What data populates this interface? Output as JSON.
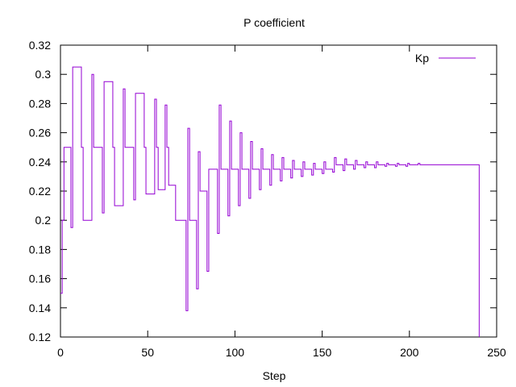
{
  "chart_data": {
    "type": "line",
    "title": "P coefficient",
    "xlabel": "Step",
    "ylabel": "",
    "xlim": [
      0,
      250
    ],
    "ylim": [
      0.12,
      0.32
    ],
    "xticks": [
      0,
      50,
      100,
      150,
      200,
      250
    ],
    "yticks": [
      0.12,
      0.14,
      0.16,
      0.18,
      0.2,
      0.22,
      0.24,
      0.26,
      0.28,
      0.3,
      0.32
    ],
    "xtick_labels": [
      "0",
      "50",
      "100",
      "150",
      "200",
      "250"
    ],
    "ytick_labels": [
      "0.12",
      "0.14",
      "0.16",
      "0.18",
      "0.2",
      "0.22",
      "0.24",
      "0.26",
      "0.28",
      "0.3",
      "0.32"
    ],
    "legend": {
      "position": "top-right"
    },
    "grid": false,
    "step": true,
    "series": [
      {
        "name": "Kp",
        "color": "#9400d3",
        "x": [
          0,
          1,
          2,
          3,
          6,
          7,
          12,
          13,
          18,
          19,
          24,
          25,
          30,
          31,
          36,
          37,
          42,
          43,
          48,
          49,
          54,
          55,
          56,
          60,
          61,
          62,
          66,
          67,
          72,
          73,
          74,
          78,
          79,
          80,
          84,
          85,
          86,
          90,
          91,
          92,
          96,
          97,
          98,
          102,
          103,
          104,
          108,
          109,
          110,
          114,
          115,
          116,
          120,
          121,
          122,
          126,
          127,
          128,
          132,
          133,
          134,
          138,
          139,
          140,
          144,
          145,
          146,
          150,
          151,
          152,
          156,
          157,
          158,
          162,
          163,
          164,
          168,
          169,
          170,
          174,
          175,
          176,
          180,
          181,
          182,
          186,
          187,
          188,
          192,
          193,
          194,
          198,
          199,
          200,
          204,
          205,
          206,
          210,
          239,
          240
        ],
        "y": [
          0.15,
          0.2,
          0.25,
          0.25,
          0.195,
          0.305,
          0.25,
          0.2,
          0.3,
          0.25,
          0.205,
          0.295,
          0.25,
          0.21,
          0.29,
          0.25,
          0.214,
          0.287,
          0.25,
          0.218,
          0.283,
          0.25,
          0.221,
          0.279,
          0.25,
          0.224,
          0.2,
          0.2,
          0.138,
          0.263,
          0.2,
          0.153,
          0.247,
          0.22,
          0.165,
          0.235,
          0.235,
          0.191,
          0.279,
          0.235,
          0.203,
          0.268,
          0.235,
          0.21,
          0.26,
          0.235,
          0.215,
          0.254,
          0.235,
          0.221,
          0.249,
          0.235,
          0.224,
          0.245,
          0.235,
          0.227,
          0.243,
          0.235,
          0.229,
          0.241,
          0.235,
          0.23,
          0.24,
          0.235,
          0.231,
          0.239,
          0.235,
          0.232,
          0.24,
          0.235,
          0.233,
          0.243,
          0.238,
          0.234,
          0.242,
          0.238,
          0.235,
          0.241,
          0.238,
          0.236,
          0.24,
          0.238,
          0.236,
          0.24,
          0.238,
          0.237,
          0.239,
          0.238,
          0.237,
          0.239,
          0.238,
          0.237,
          0.239,
          0.238,
          0.238,
          0.239,
          0.238,
          0.238,
          0.238,
          0.12
        ]
      }
    ]
  }
}
